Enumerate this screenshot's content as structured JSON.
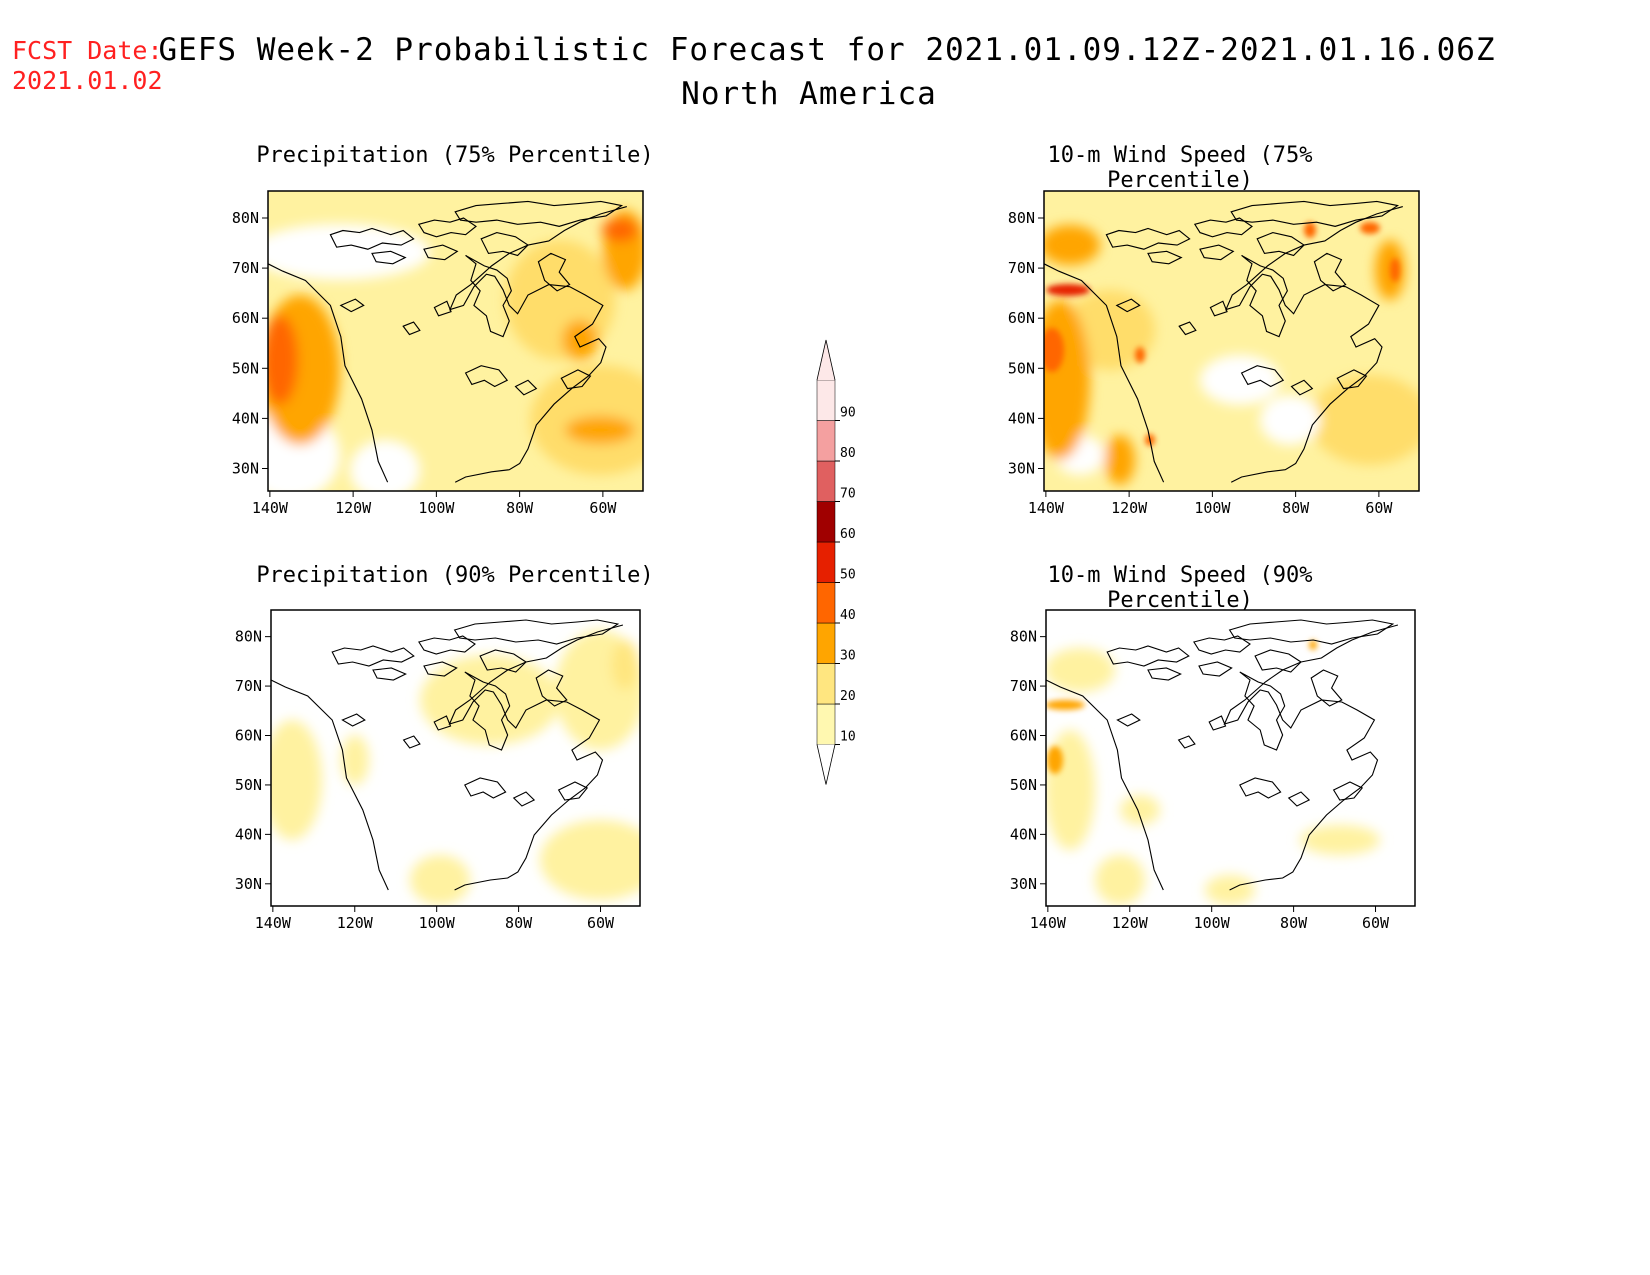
{
  "header": {
    "fcst_label": "FCST Date:",
    "fcst_date": "2021.01.02",
    "title_line1": "GEFS Week-2 Probabilistic Forecast for 2021.01.09.12Z-2021.01.16.06Z",
    "title_line2": "North America"
  },
  "panels": [
    {
      "id": "precip-75",
      "title": "Precipitation (75% Percentile)"
    },
    {
      "id": "wind-75",
      "title": "10-m Wind Speed (75% Percentile)"
    },
    {
      "id": "precip-90",
      "title": "Precipitation (90% Percentile)"
    },
    {
      "id": "wind-90",
      "title": "10-m Wind Speed (90% Percentile)"
    }
  ],
  "axes": {
    "lat_labels": [
      "80N",
      "70N",
      "60N",
      "50N",
      "40N",
      "30N"
    ],
    "lon_labels": [
      "140W",
      "120W",
      "100W",
      "80W",
      "60W"
    ]
  },
  "colorbar": {
    "levels": [
      "10",
      "20",
      "30",
      "40",
      "50",
      "60",
      "70",
      "80",
      "90"
    ],
    "colors": [
      "#fff8b0",
      "#ffe680",
      "#ffa500",
      "#ff6600",
      "#e62000",
      "#a00000",
      "#e06060",
      "#f4a0a0",
      "#fde8e8"
    ]
  }
}
